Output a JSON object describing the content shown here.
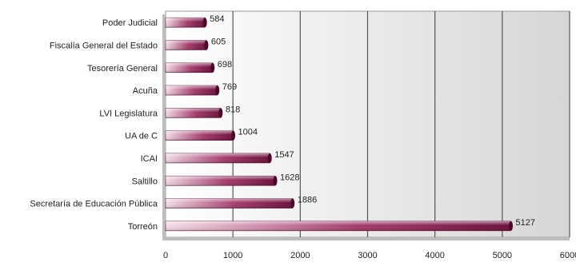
{
  "chart_data": {
    "type": "bar",
    "orientation": "horizontal",
    "title": "",
    "xlabel": "",
    "ylabel": "",
    "categories": [
      "Poder Judicial",
      "Fiscalía General del Estado",
      "Tesorería General",
      "Acuña",
      "LVI Legislatura",
      "UA de C",
      "ICAI",
      "Saltillo",
      "Secretaría de Educación Pública",
      "Torreón"
    ],
    "values": [
      584,
      605,
      698,
      769,
      818,
      1004,
      1547,
      1628,
      1886,
      5127
    ],
    "xlim": [
      0,
      6000
    ],
    "x_ticks": [
      0,
      1000,
      2000,
      3000,
      4000,
      5000,
      6000
    ],
    "grid": "vertical",
    "legend": "none",
    "colors": {
      "bar_dark": "#6b0f3b",
      "bar_light": "#f3dbe6",
      "plot_bg_light": "#ffffff",
      "plot_bg_dark": "#d6d6d6",
      "gridline": "#555555",
      "text": "#222222"
    }
  }
}
